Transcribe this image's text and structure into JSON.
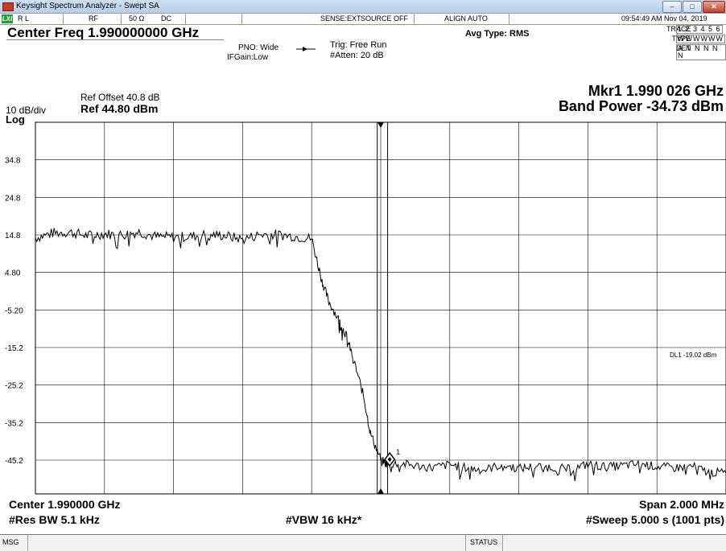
{
  "window": {
    "title": "Keysight Spectrum Analyzer - Swept SA",
    "min_label": "–",
    "max_label": "□",
    "close_label": "✕"
  },
  "status": {
    "rl": "R L",
    "rf": "RF",
    "imp": "50 Ω",
    "dc": "DC",
    "sense": "SENSE:EXT",
    "source": "SOURCE OFF",
    "align": "ALIGN AUTO",
    "datetime": "09:54:49 AM Nov 04, 2019"
  },
  "header": {
    "center_freq": "Center Freq 1.990000000 GHz",
    "pno": "PNO: Wide",
    "ifgain": "IFGain:Low",
    "trig": "Trig: Free Run",
    "atten": "#Atten: 20 dB",
    "avg_type": "Avg Type: RMS",
    "trace_label": "TRACE",
    "trace_value": "1 2 3 4 5 6",
    "type_label": "TYPE",
    "type_value": "WWWWWW",
    "det_label": "DET",
    "det_value": "A N N N N N"
  },
  "scale": {
    "ref_offset": "Ref Offset 40.8 dB",
    "ref_level": "Ref 44.80 dBm",
    "div": "10 dB/div",
    "log": "Log"
  },
  "marker": {
    "readout": "Mkr1 1.990 026 GHz",
    "band_power": "Band Power -34.73 dBm",
    "label": "1"
  },
  "chart_data": {
    "type": "line",
    "title": "",
    "xlabel": "",
    "ylabel": "",
    "x_range_ghz": [
      1.989,
      1.991
    ],
    "ylim": [
      -54.2,
      44.8
    ],
    "y_ticks": [
      "34.8",
      "24.8",
      "14.8",
      "4.80",
      "-5.20",
      "-15.2",
      "-25.2",
      "-35.2",
      "-45.2"
    ],
    "y_tick_values": [
      34.8,
      24.8,
      14.8,
      4.8,
      -5.2,
      -15.2,
      -25.2,
      -35.2,
      -45.2
    ],
    "series": [
      {
        "values_x_offset_mhz": [
          -1.0,
          -0.95,
          -0.9,
          -0.85,
          -0.8,
          -0.75,
          -0.7,
          -0.65,
          -0.6,
          -0.55,
          -0.5,
          -0.45,
          -0.4,
          -0.35,
          -0.3,
          -0.25,
          -0.2,
          -0.17,
          -0.15,
          -0.12,
          -0.1,
          -0.08,
          -0.05,
          -0.03,
          0.0,
          0.02,
          0.05,
          0.1,
          0.15,
          0.2,
          0.25,
          0.3,
          0.35,
          0.4,
          0.45,
          0.5,
          0.55,
          0.6,
          0.65,
          0.7,
          0.75,
          0.8,
          0.85,
          0.9,
          0.95,
          1.0
        ],
        "values_dbm": [
          14.0,
          15.3,
          15.5,
          14.6,
          15.1,
          14.8,
          15.6,
          14.3,
          14.2,
          14.4,
          14.9,
          14.6,
          13.6,
          14.9,
          14.9,
          14.4,
          13.8,
          2.5,
          -3.0,
          -8.0,
          -12.0,
          -18.0,
          -28.0,
          -38.0,
          -45.0,
          -46.5,
          -46.0,
          -46.7,
          -47.2,
          -46.4,
          -47.3,
          -47.8,
          -46.5,
          -47.4,
          -46.9,
          -47.1,
          -47.7,
          -46.3,
          -47.0,
          -46.7,
          -46.2,
          -46.9,
          -47.3,
          -46.8,
          -48.4,
          -48.6
        ]
      }
    ],
    "display_line": {
      "label": "DL1 -19.02 dBm",
      "value_dbm": -19.02
    },
    "marker": {
      "x_offset_mhz": 0.026,
      "value_dbm": -45.0
    },
    "grid": true,
    "trace_color": "#000000"
  },
  "footer": {
    "center": "Center 1.990000 GHz",
    "span": "Span 2.000 MHz",
    "res_bw": "#Res BW 5.1 kHz",
    "vbw": "#VBW 16 kHz*",
    "sweep": "#Sweep  5.000 s (1001 pts)"
  },
  "msgbar": {
    "msg": "MSG",
    "status": "STATUS"
  }
}
